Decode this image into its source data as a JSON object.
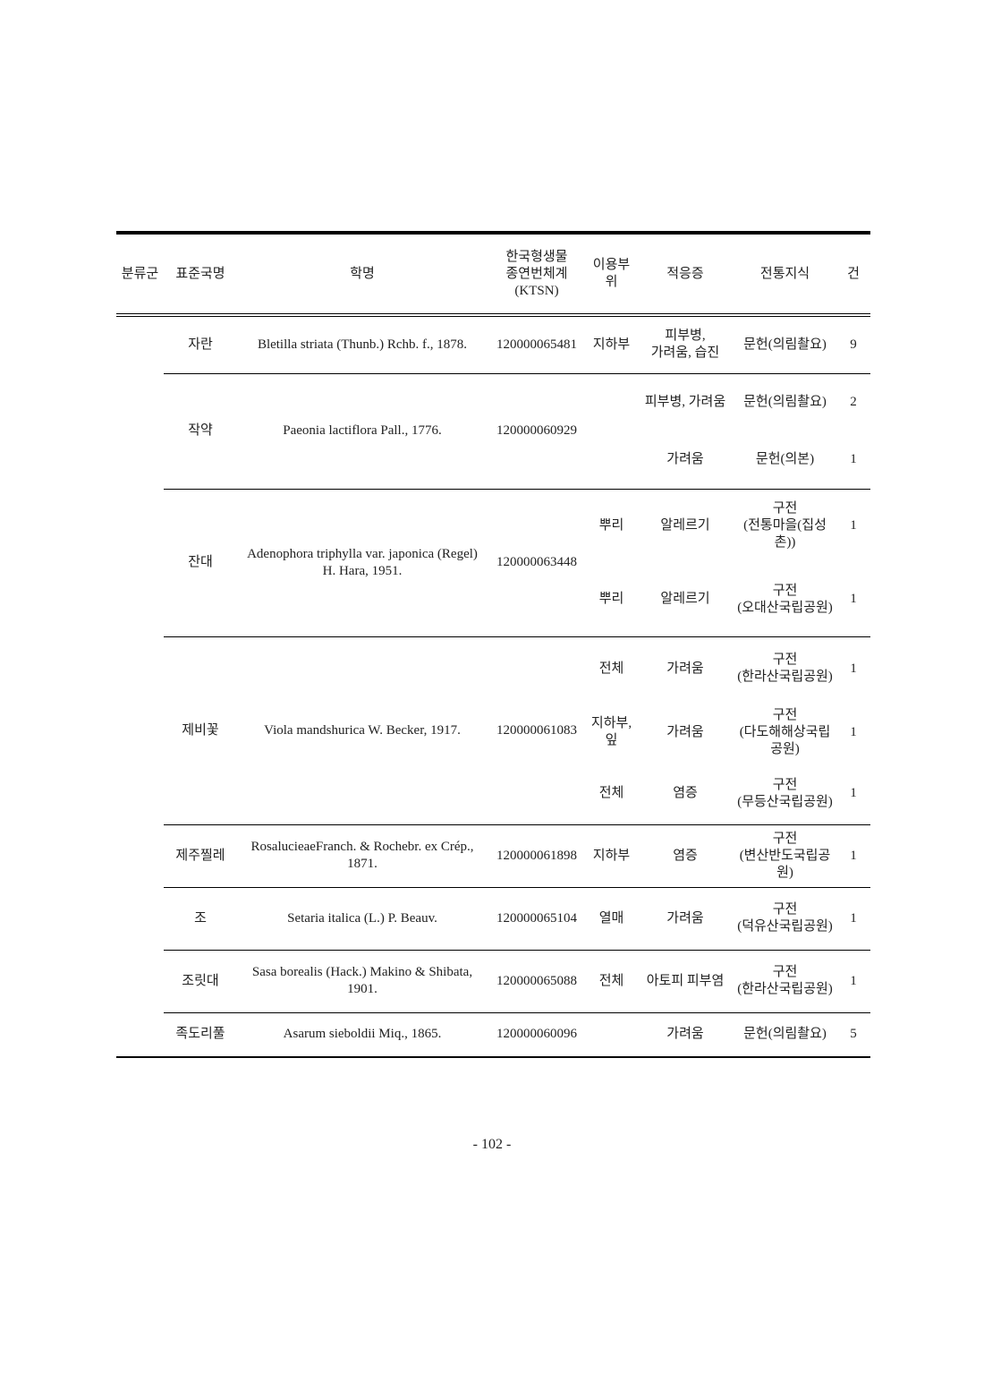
{
  "table": {
    "headers": [
      "분류군",
      "표준국명",
      "학명",
      "한국형생물\n종연번체계\n(KTSN)",
      "이용부위",
      "적응증",
      "전통지식",
      "건"
    ],
    "classification": "",
    "rows": [
      {
        "name": "자란",
        "sci": "Bletilla striata (Thunb.) Rchb. f., 1878.",
        "ktsn": "120000065481",
        "uses": [
          {
            "part": "지하부",
            "indication": "피부병,\n가려움, 습진",
            "knowledge": "문헌(의림촬요)",
            "count": "9"
          }
        ]
      },
      {
        "name": "작약",
        "sci": "Paeonia lactiflora Pall., 1776.",
        "ktsn": "120000060929",
        "uses": [
          {
            "part": "",
            "indication": "피부병, 가려움",
            "knowledge": "문헌(의림촬요)",
            "count": "2"
          },
          {
            "part": "",
            "indication": "가려움",
            "knowledge": "문헌(의본)",
            "count": "1"
          }
        ]
      },
      {
        "name": "잔대",
        "sci": "Adenophora triphylla var. japonica (Regel)\nH. Hara, 1951.",
        "ktsn": "120000063448",
        "uses": [
          {
            "part": "뿌리",
            "indication": "알레르기",
            "knowledge": "구전\n(전통마을(집성촌))",
            "count": "1"
          },
          {
            "part": "뿌리",
            "indication": "알레르기",
            "knowledge": "구전\n(오대산국립공원)",
            "count": "1"
          }
        ]
      },
      {
        "name": "제비꽃",
        "sci": "Viola mandshurica W. Becker, 1917.",
        "ktsn": "120000061083",
        "uses": [
          {
            "part": "전체",
            "indication": "가려움",
            "knowledge": "구전\n(한라산국립공원)",
            "count": "1"
          },
          {
            "part": "지하부,\n잎",
            "indication": "가려움",
            "knowledge": "구전\n(다도해해상국립공원)",
            "count": "1"
          },
          {
            "part": "전체",
            "indication": "염증",
            "knowledge": "구전\n(무등산국립공원)",
            "count": "1"
          }
        ]
      },
      {
        "name": "제주찔레",
        "sci": "RosalucieaeFranch. & Rochebr. ex Crép.,\n1871.",
        "ktsn": "120000061898",
        "uses": [
          {
            "part": "지하부",
            "indication": "염증",
            "knowledge": "구전\n(변산반도국립공원)",
            "count": "1"
          }
        ]
      },
      {
        "name": "조",
        "sci": "Setaria italica (L.) P. Beauv.",
        "ktsn": "120000065104",
        "uses": [
          {
            "part": "열매",
            "indication": "가려움",
            "knowledge": "구전\n(덕유산국립공원)",
            "count": "1"
          }
        ]
      },
      {
        "name": "조릿대",
        "sci": "Sasa borealis (Hack.) Makino & Shibata,\n1901.",
        "ktsn": "120000065088",
        "uses": [
          {
            "part": "전체",
            "indication": "아토피 피부염",
            "knowledge": "구전\n(한라산국립공원)",
            "count": "1"
          }
        ]
      },
      {
        "name": "족도리풀",
        "sci": "Asarum sieboldii Miq., 1865.",
        "ktsn": "120000060096",
        "uses": [
          {
            "part": "",
            "indication": "가려움",
            "knowledge": "문헌(의림촬요)",
            "count": "5"
          }
        ]
      }
    ]
  },
  "page_number": "- 102 -"
}
